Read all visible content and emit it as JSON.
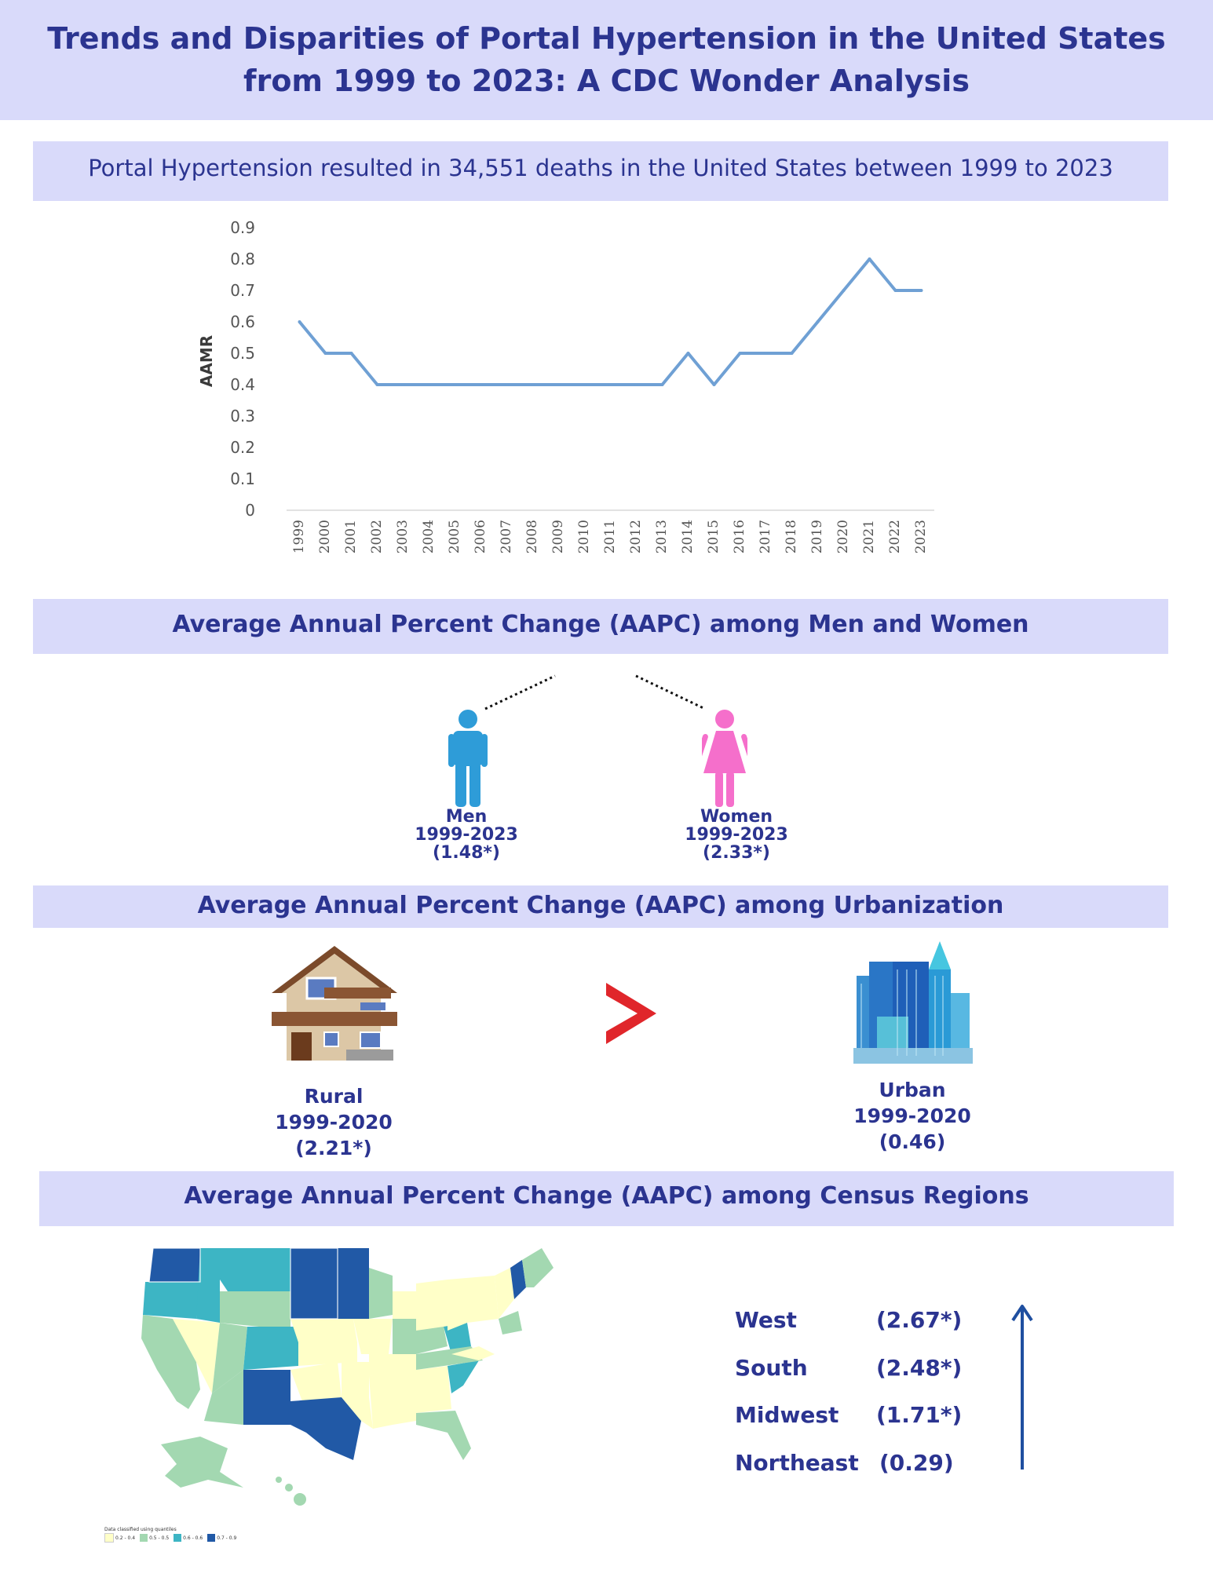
{
  "title": "Trends and Disparities of Portal Hypertension  in the United States from 1999 to 2023: A CDC Wonder Analysis",
  "deaths_summary": "Portal Hypertension resulted in 34,551 deaths in the United States between 1999 to 2023",
  "chart_data": {
    "type": "line",
    "title": "",
    "xlabel": "",
    "ylabel": "AAMR",
    "ylim": [
      0,
      0.9
    ],
    "yticks": [
      "0",
      "0.1",
      "0.2",
      "0.3",
      "0.4",
      "0.5",
      "0.6",
      "0.7",
      "0.8",
      "0.9"
    ],
    "x": [
      "1999",
      "2000",
      "2001",
      "2002",
      "2003",
      "2004",
      "2005",
      "2006",
      "2007",
      "2008",
      "2009",
      "2010",
      "2011",
      "2012",
      "2013",
      "2014",
      "2015",
      "2016",
      "2017",
      "2018",
      "2019",
      "2020",
      "2021",
      "2022",
      "2023"
    ],
    "series": [
      {
        "values": [
          0.6,
          0.5,
          0.5,
          0.4,
          0.4,
          0.4,
          0.4,
          0.4,
          0.4,
          0.4,
          0.4,
          0.4,
          0.4,
          0.4,
          0.4,
          0.5,
          0.4,
          0.5,
          0.5,
          0.5,
          0.6,
          0.7,
          0.8,
          0.7,
          0.7
        ],
        "color": "#6fa0d4"
      }
    ],
    "grid": false
  },
  "sex_section": {
    "title": "Average Annual Percent Change (AAPC) among Men and Women",
    "men": {
      "label": "Men",
      "period": "1999-2023",
      "value": "(1.48*)",
      "color": "#2e9cd8",
      "icon": "man-icon"
    },
    "women": {
      "label": "Women",
      "period": "1999-2023",
      "value": "(2.33*)",
      "color": "#f56fcb",
      "icon": "woman-icon"
    }
  },
  "urban_section": {
    "title": "Average Annual Percent Change (AAPC) among Urbanization",
    "rural": {
      "label": "Rural",
      "period": "1999-2020",
      "value": "(2.21*)",
      "icon": "house-icon"
    },
    "comparison_icon": "greater-than-icon",
    "comparison_color": "#e0262b",
    "urban": {
      "label": "Urban",
      "period": "1999-2020",
      "value": "(0.46)",
      "icon": "city-icon"
    }
  },
  "region_section": {
    "title": "Average Annual Percent Change (AAPC) among Census Regions",
    "regions": [
      {
        "name": "West",
        "value": "(2.67*)"
      },
      {
        "name": "South",
        "value": "(2.48*)"
      },
      {
        "name": "Midwest",
        "value": "(1.71*)"
      },
      {
        "name": "Northeast",
        "value": "(0.29)"
      }
    ],
    "arrow_icon": "up-arrow-icon",
    "map_icon": "us-map-icon",
    "map_legend": {
      "title": "Data classified using quantiles",
      "bins": [
        {
          "label": "0.2 - 0.4",
          "color": "#ffffc8"
        },
        {
          "label": "0.5 - 0.5",
          "color": "#a3d8b1"
        },
        {
          "label": "0.6 - 0.6",
          "color": "#3db5c4"
        },
        {
          "label": "0.7 - 0.9",
          "color": "#2159a6"
        }
      ]
    }
  }
}
